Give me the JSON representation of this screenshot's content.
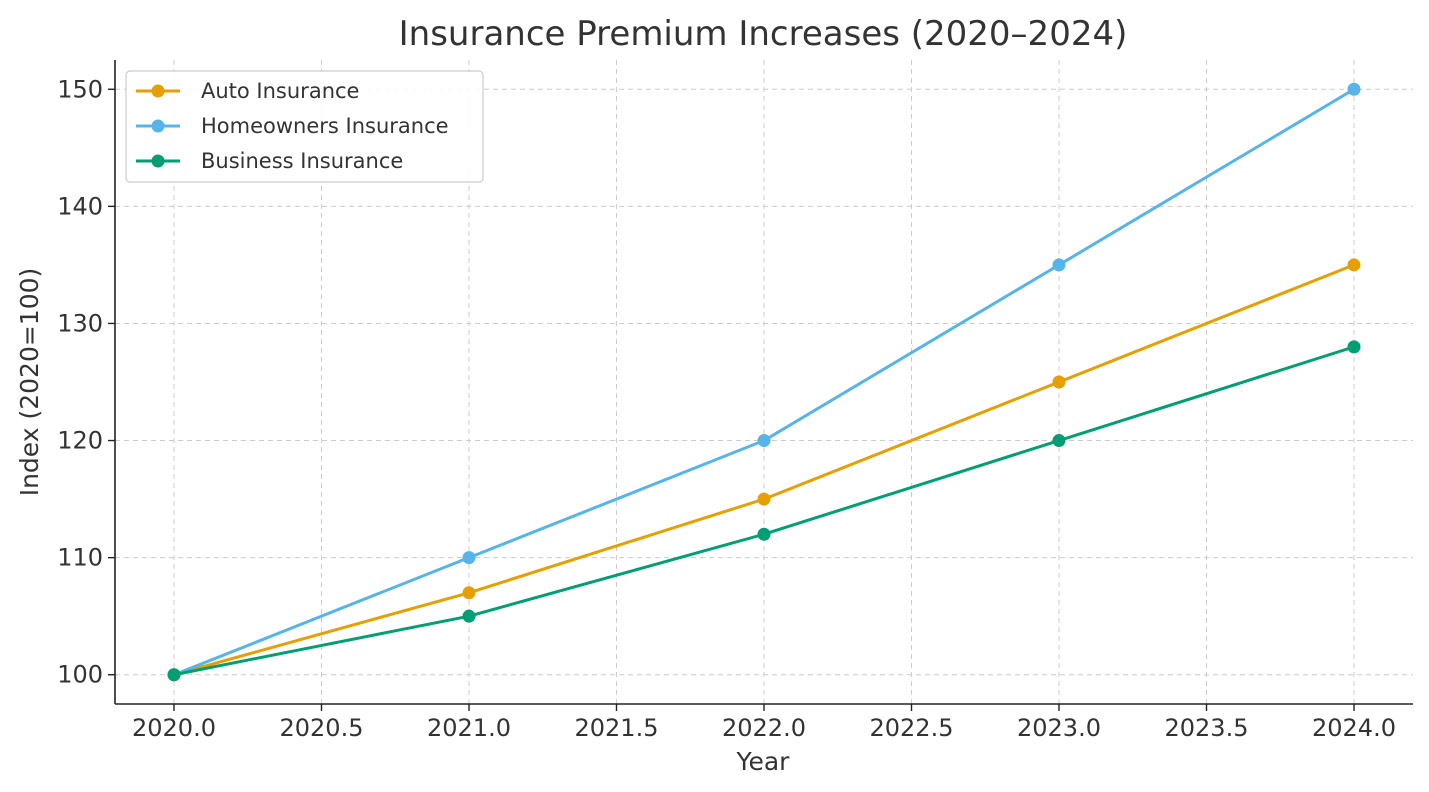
{
  "chart_data": {
    "type": "line",
    "title": "Insurance Premium Increases (2020–2024)",
    "xlabel": "Year",
    "ylabel": "Index (2020=100)",
    "x": [
      2020,
      2021,
      2022,
      2023,
      2024
    ],
    "xlim": [
      2019.8,
      2024.2
    ],
    "ylim": [
      97.5,
      152.5
    ],
    "xticks": [
      2020.0,
      2020.5,
      2021.0,
      2021.5,
      2022.0,
      2022.5,
      2023.0,
      2023.5,
      2024.0
    ],
    "xtick_labels": [
      "2020.0",
      "2020.5",
      "2021.0",
      "2021.5",
      "2022.0",
      "2022.5",
      "2023.0",
      "2023.5",
      "2024.0"
    ],
    "yticks": [
      100,
      110,
      120,
      130,
      140,
      150
    ],
    "ytick_labels": [
      "100",
      "110",
      "120",
      "130",
      "140",
      "150"
    ],
    "grid": true,
    "legend_position": "top-left",
    "series": [
      {
        "name": "Auto Insurance",
        "color": "#E69F00",
        "values": [
          100,
          107,
          115,
          125,
          135
        ]
      },
      {
        "name": "Homeowners Insurance",
        "color": "#56B4E9",
        "values": [
          100,
          110,
          120,
          135,
          150
        ]
      },
      {
        "name": "Business Insurance",
        "color": "#009E73",
        "values": [
          100,
          105,
          112,
          120,
          128
        ]
      }
    ]
  }
}
